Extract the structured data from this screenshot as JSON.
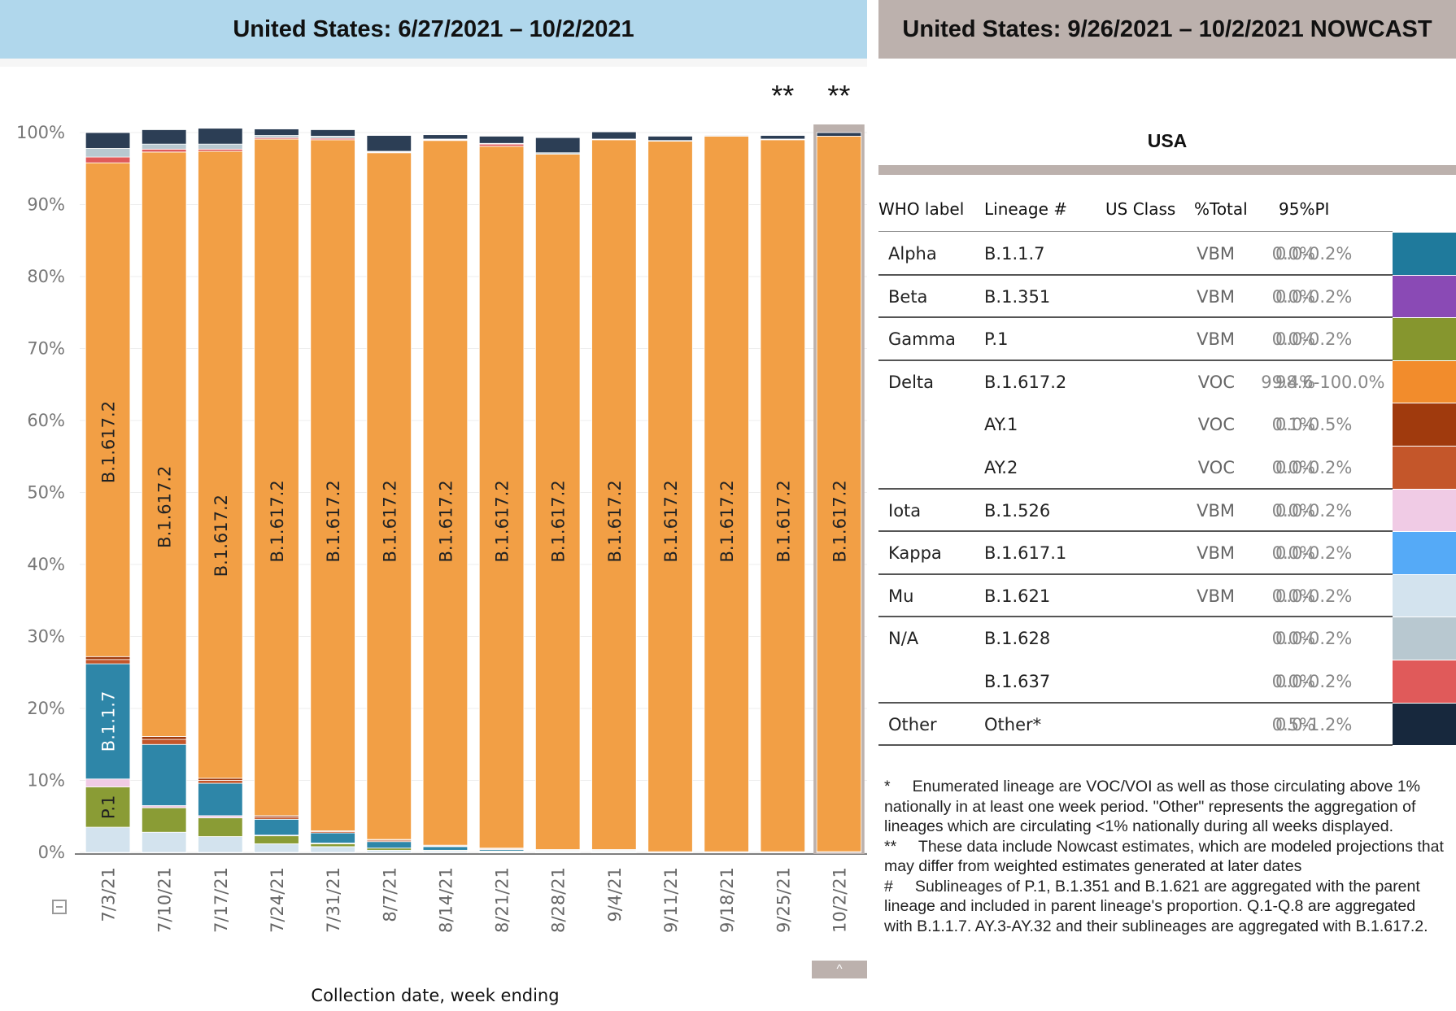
{
  "left_header": "United States: 6/27/2021 – 10/2/2021",
  "right_header": "United States: 9/26/2021 – 10/2/2021 NOWCAST",
  "nowcast_marker": "**",
  "scroll_button": "^",
  "colors": {
    "left_header_bg": "#b0d7ec",
    "right_header_bg": "#bcb1ad",
    "B.1.617.2": "#f29f45",
    "AY.1": "#a03a0d",
    "AY.2": "#c4562a",
    "B.1.1.7": "#2e86a8",
    "P.1": "#8a9c35",
    "B.1.526": "#f0cbe5",
    "B.1.621": "#d3e3ee",
    "B.1.628": "#b8c8d0",
    "B.1.637": "#e05a5a",
    "Other": "#2c3e55"
  },
  "chart_data": {
    "type": "bar",
    "stacked": true,
    "xlabel": "Collection date, week ending",
    "ylabel": "",
    "ylim": [
      0,
      100
    ],
    "y_ticks": [
      "0%",
      "10%",
      "20%",
      "30%",
      "40%",
      "50%",
      "60%",
      "70%",
      "80%",
      "90%",
      "100%"
    ],
    "grid": true,
    "categories": [
      "7/3/21",
      "7/10/21",
      "7/17/21",
      "7/24/21",
      "7/31/21",
      "8/7/21",
      "8/14/21",
      "8/21/21",
      "8/28/21",
      "9/4/21",
      "9/11/21",
      "9/18/21",
      "9/25/21",
      "10/2/21"
    ],
    "nowcast_categories": [
      "9/25/21",
      "10/2/21"
    ],
    "series": [
      {
        "name": "B.1.621",
        "values": [
          3.5,
          2.8,
          2.2,
          1.2,
          0.8,
          0.3,
          0.2,
          0.1,
          0.1,
          0.1,
          0,
          0,
          0,
          0
        ]
      },
      {
        "name": "P.1",
        "values": [
          5.6,
          3.4,
          2.6,
          1.1,
          0.4,
          0.3,
          0.1,
          0.1,
          0,
          0,
          0,
          0,
          0,
          0
        ]
      },
      {
        "name": "B.1.526",
        "values": [
          1.1,
          0.3,
          0.3,
          0.1,
          0.1,
          0,
          0,
          0,
          0,
          0,
          0,
          0,
          0,
          0
        ]
      },
      {
        "name": "B.1.1.7",
        "values": [
          16,
          8.5,
          4.5,
          2.2,
          1.4,
          0.9,
          0.5,
          0.2,
          0.1,
          0.1,
          0,
          0,
          0,
          0
        ]
      },
      {
        "name": "AY.2",
        "values": [
          0.6,
          0.7,
          0.4,
          0.3,
          0.2,
          0.2,
          0.1,
          0.1,
          0.1,
          0.1,
          0,
          0,
          0,
          0
        ]
      },
      {
        "name": "AY.1",
        "values": [
          0.4,
          0.4,
          0.3,
          0.2,
          0.1,
          0.1,
          0.1,
          0.1,
          0.1,
          0.1,
          0.1,
          0.1,
          0.1,
          0.1
        ]
      },
      {
        "name": "B.1.617.2",
        "values": [
          68.6,
          81.2,
          87.1,
          94.0,
          96.0,
          95.4,
          97.9,
          97.5,
          96.6,
          98.6,
          98.7,
          99.4,
          98.9,
          99.4
        ]
      },
      {
        "name": "B.1.637",
        "values": [
          0.8,
          0.4,
          0.3,
          0.2,
          0.2,
          0.1,
          0.1,
          0.3,
          0,
          0,
          0,
          0,
          0,
          0
        ]
      },
      {
        "name": "B.1.628",
        "values": [
          1.2,
          0.7,
          0.7,
          0.3,
          0.3,
          0.1,
          0.1,
          0.1,
          0.2,
          0.1,
          0.1,
          0,
          0.1,
          0
        ]
      },
      {
        "name": "Other",
        "values": [
          2.2,
          2.0,
          2.2,
          0.9,
          0.9,
          2.2,
          0.6,
          1.0,
          2.1,
          1.0,
          0.6,
          0.1,
          0.5,
          0.5
        ]
      }
    ],
    "bar_labels": [
      {
        "category": "7/3/21",
        "series": "B.1.617.2",
        "text": "B.1.617.2"
      },
      {
        "category": "7/3/21",
        "series": "B.1.1.7",
        "text": "B.1.1.7"
      },
      {
        "category": "7/3/21",
        "series": "P.1",
        "text": "P.1"
      },
      {
        "category": "7/10/21",
        "series": "B.1.617.2",
        "text": "B.1.617.2"
      },
      {
        "category": "7/17/21",
        "series": "B.1.617.2",
        "text": "B.1.617.2"
      },
      {
        "category": "7/24/21",
        "series": "B.1.617.2",
        "text": "B.1.617.2"
      },
      {
        "category": "7/31/21",
        "series": "B.1.617.2",
        "text": "B.1.617.2"
      },
      {
        "category": "8/7/21",
        "series": "B.1.617.2",
        "text": "B.1.617.2"
      },
      {
        "category": "8/14/21",
        "series": "B.1.617.2",
        "text": "B.1.617.2"
      },
      {
        "category": "8/21/21",
        "series": "B.1.617.2",
        "text": "B.1.617.2"
      },
      {
        "category": "8/28/21",
        "series": "B.1.617.2",
        "text": "B.1.617.2"
      },
      {
        "category": "9/4/21",
        "series": "B.1.617.2",
        "text": "B.1.617.2"
      },
      {
        "category": "9/11/21",
        "series": "B.1.617.2",
        "text": "B.1.617.2"
      },
      {
        "category": "9/18/21",
        "series": "B.1.617.2",
        "text": "B.1.617.2"
      },
      {
        "category": "9/25/21",
        "series": "B.1.617.2",
        "text": "B.1.617.2"
      },
      {
        "category": "10/2/21",
        "series": "B.1.617.2",
        "text": "B.1.617.2"
      }
    ]
  },
  "nowcast_table": {
    "region": "USA",
    "headers": [
      "WHO label",
      "Lineage #",
      "US Class",
      "%Total",
      "95%PI"
    ],
    "rows": [
      {
        "who": "Alpha",
        "lineage": "B.1.1.7",
        "us_class": "VBM",
        "pct": "0.0%",
        "pi": "0.0-0.2%",
        "color": "#1f7a9c",
        "sep": true
      },
      {
        "who": "Beta",
        "lineage": "B.1.351",
        "us_class": "VBM",
        "pct": "0.0%",
        "pi": "0.0-0.2%",
        "color": "#8a4ab5",
        "sep": true
      },
      {
        "who": "Gamma",
        "lineage": "P.1",
        "us_class": "VBM",
        "pct": "0.0%",
        "pi": "0.0-0.2%",
        "color": "#86962e",
        "sep": true
      },
      {
        "who": "Delta",
        "lineage": "B.1.617.2",
        "us_class": "VOC",
        "pct": "99.4%",
        "pi": "98.6-100.0%",
        "color": "#f28c2c",
        "sep": false
      },
      {
        "who": "",
        "lineage": "AY.1",
        "us_class": "VOC",
        "pct": "0.1%",
        "pi": "0.0-0.5%",
        "color": "#a03a0d",
        "sep": false
      },
      {
        "who": "",
        "lineage": "AY.2",
        "us_class": "VOC",
        "pct": "0.0%",
        "pi": "0.0-0.2%",
        "color": "#c4562a",
        "sep": true
      },
      {
        "who": "Iota",
        "lineage": "B.1.526",
        "us_class": "VBM",
        "pct": "0.0%",
        "pi": "0.0-0.2%",
        "color": "#f0cbe5",
        "sep": true
      },
      {
        "who": "Kappa",
        "lineage": "B.1.617.1",
        "us_class": "VBM",
        "pct": "0.0%",
        "pi": "0.0-0.2%",
        "color": "#55aaf7",
        "sep": true
      },
      {
        "who": "Mu",
        "lineage": "B.1.621",
        "us_class": "VBM",
        "pct": "0.0%",
        "pi": "0.0-0.2%",
        "color": "#d3e3ee",
        "sep": true
      },
      {
        "who": "N/A",
        "lineage": "B.1.628",
        "us_class": "",
        "pct": "0.0%",
        "pi": "0.0-0.2%",
        "color": "#b8c8d0",
        "sep": false
      },
      {
        "who": "",
        "lineage": "B.1.637",
        "us_class": "",
        "pct": "0.0%",
        "pi": "0.0-0.2%",
        "color": "#e05a5a",
        "sep": true
      },
      {
        "who": "Other",
        "lineage": "Other*",
        "us_class": "",
        "pct": "0.5%",
        "pi": "0.0-1.2%",
        "color": "#17283d",
        "sep": true
      }
    ]
  },
  "footnotes": {
    "star": "*     Enumerated lineage are VOC/VOI as well as those circulating above 1% nationally in at least one week period. \"Other\" represents the aggregation of lineages which are circulating <1% nationally during all weeks displayed.",
    "double_star": "**     These data include Nowcast estimates, which are modeled projections that may differ from weighted estimates generated at later dates",
    "hash": "#     Sublineages of P.1, B.1.351 and B.1.621 are aggregated with the parent lineage and included in parent lineage's proportion. Q.1-Q.8 are aggregated with B.1.1.7. AY.3-AY.32 and their sublineages are aggregated with B.1.617.2."
  }
}
